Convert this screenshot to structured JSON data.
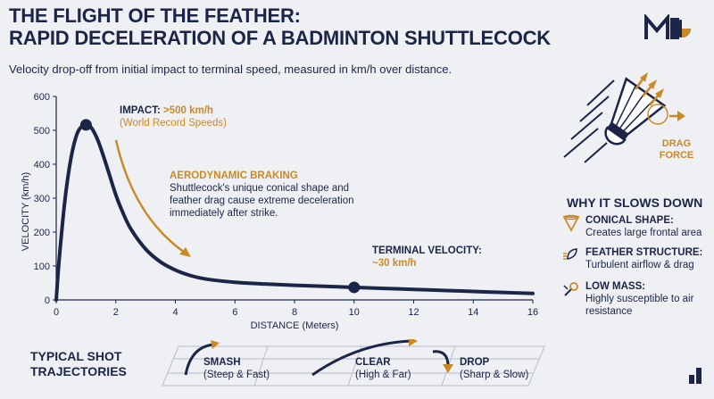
{
  "header": {
    "title_line1": "THE FLIGHT OF THE FEATHER:",
    "title_line2": "RAPID DECELERATION OF A BADMINTON SHUTTLECOCK",
    "subtitle": "Velocity drop-off from initial impact to terminal speed, measured in km/h over distance."
  },
  "chart_data": {
    "type": "line",
    "xlabel": "DISTANCE (Meters)",
    "ylabel": "VELOCITY (km/h)",
    "xlim": [
      0,
      16
    ],
    "ylim": [
      0,
      600
    ],
    "xticks": [
      0,
      2,
      4,
      6,
      8,
      10,
      12,
      14,
      16
    ],
    "yticks": [
      0,
      100,
      200,
      300,
      400,
      500,
      600
    ],
    "grid": false,
    "series": [
      {
        "x": [
          0,
          0.1,
          0.3,
          0.5,
          0.7,
          0.9,
          1.05,
          1.2,
          1.4,
          1.6,
          1.8,
          2.0,
          2.2,
          2.5,
          3.0,
          3.5,
          4.0,
          4.5,
          5.0,
          6.0,
          7.0,
          8.0,
          9.0,
          10.0,
          11.0,
          12.0,
          13.0,
          14.0,
          15.0,
          16.0
        ],
        "values": [
          0,
          120,
          300,
          420,
          490,
          515,
          518,
          505,
          470,
          420,
          365,
          310,
          265,
          210,
          150,
          112,
          88,
          72,
          62,
          52,
          47,
          43,
          40,
          37,
          34,
          31,
          28,
          25,
          22,
          19
        ]
      }
    ],
    "markers": [
      {
        "x": 1.0,
        "y": 516
      },
      {
        "x": 10.0,
        "y": 37
      }
    ],
    "annotations": [
      {
        "title": "IMPACT:",
        "highlight": ">500 km/h",
        "text": "(World Record Speeds)"
      },
      {
        "title": "AERODYNAMIC BRAKING",
        "text": "Shuttlecock's unique conical shape and feather drag cause extreme deceleration immediately after strike."
      },
      {
        "title": "TERMINAL VELOCITY:",
        "highlight": "~30 km/h"
      }
    ]
  },
  "drag_label": "DRAG FORCE",
  "why": {
    "title": "WHY IT SLOWS DOWN",
    "items": [
      {
        "icon": "cone-icon",
        "title": "CONICAL SHAPE:",
        "text": "Creates large frontal area"
      },
      {
        "icon": "feather-airflow-icon",
        "title": "FEATHER STRUCTURE:",
        "text": "Turbulent airflow & drag"
      },
      {
        "icon": "low-mass-icon",
        "title": "LOW MASS:",
        "text": "Highly susceptible to air resistance"
      }
    ]
  },
  "trajectories": {
    "title": "TYPICAL SHOT TRAJECTORIES",
    "items": [
      {
        "title": "SMASH",
        "text": "(Steep & Fast)"
      },
      {
        "title": "CLEAR",
        "text": "(High & Far)"
      },
      {
        "title": "DROP",
        "text": "(Sharp & Slow)"
      }
    ]
  },
  "colors": {
    "navy": "#1b2547",
    "gold": "#c98a26",
    "background": "#eef0f4"
  }
}
